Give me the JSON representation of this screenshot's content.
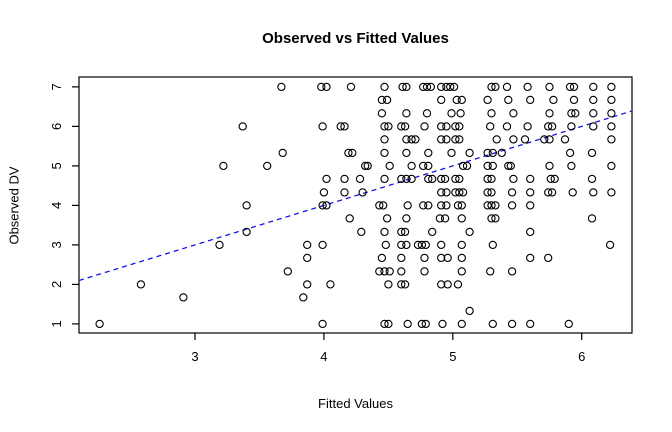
{
  "figure": {
    "title": "Observed vs Fitted Values",
    "xlabel": "Fitted Values",
    "ylabel": "Observed DV"
  },
  "chart_data": {
    "type": "scatter",
    "title": "Observed vs Fitted Values",
    "xlabel": "Fitted Values",
    "ylabel": "Observed DV",
    "x_ticks": [
      3,
      4,
      5,
      6
    ],
    "y_ticks": [
      1,
      2,
      3,
      4,
      5,
      6,
      7
    ],
    "xlim": [
      2.1,
      6.39
    ],
    "ylim": [
      0.77,
      7.25
    ],
    "grid": false,
    "legend": "none",
    "marker": "open-circle",
    "marker_color": "#000000",
    "reference_line": {
      "type": "identity",
      "slope": 1,
      "intercept": 0,
      "style": "dashed",
      "color": "#1414e6"
    },
    "points": [
      [
        3.67,
        7
      ],
      [
        3.98,
        7
      ],
      [
        4.02,
        7
      ],
      [
        4.21,
        7
      ],
      [
        4.47,
        7
      ],
      [
        4.61,
        7
      ],
      [
        4.64,
        7
      ],
      [
        4.77,
        7
      ],
      [
        4.8,
        7
      ],
      [
        4.83,
        7
      ],
      [
        4.91,
        7
      ],
      [
        4.95,
        7
      ],
      [
        4.98,
        7
      ],
      [
        5.01,
        7
      ],
      [
        5.3,
        7
      ],
      [
        5.33,
        7
      ],
      [
        5.42,
        7
      ],
      [
        5.58,
        7
      ],
      [
        5.75,
        7
      ],
      [
        5.91,
        7
      ],
      [
        5.94,
        7
      ],
      [
        6.09,
        7
      ],
      [
        6.23,
        7
      ],
      [
        4.45,
        6.67
      ],
      [
        4.49,
        6.67
      ],
      [
        4.91,
        6.67
      ],
      [
        5.03,
        6.67
      ],
      [
        5.07,
        6.67
      ],
      [
        5.27,
        6.67
      ],
      [
        5.43,
        6.67
      ],
      [
        5.6,
        6.67
      ],
      [
        5.78,
        6.67
      ],
      [
        5.94,
        6.67
      ],
      [
        6.09,
        6.67
      ],
      [
        6.23,
        6.67
      ],
      [
        4.45,
        6.33
      ],
      [
        4.64,
        6.33
      ],
      [
        4.8,
        6.33
      ],
      [
        4.99,
        6.33
      ],
      [
        5.06,
        6.33
      ],
      [
        5.3,
        6.33
      ],
      [
        5.47,
        6.33
      ],
      [
        5.75,
        6.33
      ],
      [
        5.92,
        6.33
      ],
      [
        5.95,
        6.33
      ],
      [
        6.09,
        6.33
      ],
      [
        6.23,
        6.33
      ],
      [
        3.37,
        6
      ],
      [
        3.99,
        6
      ],
      [
        4.13,
        6
      ],
      [
        4.16,
        6
      ],
      [
        4.47,
        6
      ],
      [
        4.5,
        6
      ],
      [
        4.6,
        6
      ],
      [
        4.63,
        6
      ],
      [
        4.78,
        6
      ],
      [
        4.91,
        6
      ],
      [
        4.95,
        6
      ],
      [
        5.02,
        6
      ],
      [
        5.05,
        6
      ],
      [
        5.29,
        6
      ],
      [
        5.42,
        6
      ],
      [
        5.58,
        6
      ],
      [
        5.74,
        6
      ],
      [
        5.77,
        6
      ],
      [
        5.92,
        6
      ],
      [
        6.09,
        6
      ],
      [
        6.23,
        6
      ],
      [
        4.47,
        5.67
      ],
      [
        4.64,
        5.67
      ],
      [
        4.68,
        5.67
      ],
      [
        4.71,
        5.67
      ],
      [
        4.91,
        5.67
      ],
      [
        4.95,
        5.67
      ],
      [
        5.02,
        5.67
      ],
      [
        5.05,
        5.67
      ],
      [
        5.34,
        5.67
      ],
      [
        5.47,
        5.67
      ],
      [
        5.56,
        5.67
      ],
      [
        5.71,
        5.67
      ],
      [
        5.75,
        5.67
      ],
      [
        5.87,
        5.67
      ],
      [
        6.23,
        5.67
      ],
      [
        3.68,
        5.33
      ],
      [
        4.19,
        5.33
      ],
      [
        4.22,
        5.33
      ],
      [
        4.47,
        5.33
      ],
      [
        4.64,
        5.33
      ],
      [
        4.81,
        5.33
      ],
      [
        4.99,
        5.33
      ],
      [
        5.13,
        5.33
      ],
      [
        5.27,
        5.33
      ],
      [
        5.31,
        5.33
      ],
      [
        5.38,
        5.33
      ],
      [
        5.91,
        5.33
      ],
      [
        6.08,
        5.33
      ],
      [
        3.22,
        5
      ],
      [
        3.56,
        5
      ],
      [
        4.32,
        5
      ],
      [
        4.34,
        5
      ],
      [
        4.51,
        5
      ],
      [
        4.68,
        5
      ],
      [
        4.77,
        5
      ],
      [
        4.81,
        5
      ],
      [
        5.08,
        5
      ],
      [
        5.11,
        5
      ],
      [
        5.27,
        5
      ],
      [
        5.31,
        5
      ],
      [
        5.43,
        5
      ],
      [
        5.45,
        5
      ],
      [
        5.75,
        5
      ],
      [
        5.92,
        5
      ],
      [
        6.23,
        5
      ],
      [
        4.02,
        4.67
      ],
      [
        4.16,
        4.67
      ],
      [
        4.28,
        4.67
      ],
      [
        4.47,
        4.67
      ],
      [
        4.6,
        4.67
      ],
      [
        4.64,
        4.67
      ],
      [
        4.68,
        4.67
      ],
      [
        4.81,
        4.67
      ],
      [
        4.84,
        4.67
      ],
      [
        4.91,
        4.67
      ],
      [
        4.94,
        4.67
      ],
      [
        5.02,
        4.67
      ],
      [
        5.05,
        4.67
      ],
      [
        5.27,
        4.67
      ],
      [
        5.3,
        4.67
      ],
      [
        5.47,
        4.67
      ],
      [
        5.6,
        4.67
      ],
      [
        5.76,
        4.67
      ],
      [
        5.79,
        4.67
      ],
      [
        6.08,
        4.67
      ],
      [
        4.0,
        4.33
      ],
      [
        4.16,
        4.33
      ],
      [
        4.3,
        4.33
      ],
      [
        4.91,
        4.33
      ],
      [
        4.95,
        4.33
      ],
      [
        5.02,
        4.33
      ],
      [
        5.05,
        4.33
      ],
      [
        5.08,
        4.33
      ],
      [
        5.27,
        4.33
      ],
      [
        5.3,
        4.33
      ],
      [
        5.46,
        4.33
      ],
      [
        5.6,
        4.33
      ],
      [
        5.74,
        4.33
      ],
      [
        5.77,
        4.33
      ],
      [
        5.93,
        4.33
      ],
      [
        6.09,
        4.33
      ],
      [
        6.23,
        4.33
      ],
      [
        3.4,
        4
      ],
      [
        3.99,
        4
      ],
      [
        4.02,
        4
      ],
      [
        4.43,
        4
      ],
      [
        4.46,
        4
      ],
      [
        4.65,
        4
      ],
      [
        4.77,
        4
      ],
      [
        4.81,
        4
      ],
      [
        4.91,
        4
      ],
      [
        4.95,
        4
      ],
      [
        5.04,
        4
      ],
      [
        5.07,
        4
      ],
      [
        5.27,
        4
      ],
      [
        5.3,
        4
      ],
      [
        5.33,
        4
      ],
      [
        5.46,
        4
      ],
      [
        5.6,
        4
      ],
      [
        4.2,
        3.67
      ],
      [
        4.49,
        3.67
      ],
      [
        4.64,
        3.67
      ],
      [
        4.9,
        3.67
      ],
      [
        4.94,
        3.67
      ],
      [
        5.07,
        3.67
      ],
      [
        5.3,
        3.67
      ],
      [
        5.33,
        3.67
      ],
      [
        6.08,
        3.67
      ],
      [
        3.4,
        3.33
      ],
      [
        4.29,
        3.33
      ],
      [
        4.47,
        3.33
      ],
      [
        4.6,
        3.33
      ],
      [
        4.63,
        3.33
      ],
      [
        4.84,
        3.33
      ],
      [
        5.13,
        3.33
      ],
      [
        5.6,
        3.33
      ],
      [
        3.19,
        3
      ],
      [
        3.87,
        3
      ],
      [
        3.99,
        3
      ],
      [
        4.48,
        3
      ],
      [
        4.6,
        3
      ],
      [
        4.64,
        3
      ],
      [
        4.73,
        3
      ],
      [
        4.76,
        3
      ],
      [
        4.79,
        3
      ],
      [
        4.91,
        3
      ],
      [
        5.07,
        3
      ],
      [
        5.31,
        3
      ],
      [
        6.22,
        3
      ],
      [
        3.87,
        2.67
      ],
      [
        4.45,
        2.67
      ],
      [
        4.6,
        2.67
      ],
      [
        4.78,
        2.67
      ],
      [
        4.91,
        2.67
      ],
      [
        4.96,
        2.67
      ],
      [
        5.07,
        2.67
      ],
      [
        5.6,
        2.67
      ],
      [
        5.74,
        2.67
      ],
      [
        3.72,
        2.33
      ],
      [
        4.43,
        2.33
      ],
      [
        4.47,
        2.33
      ],
      [
        4.51,
        2.33
      ],
      [
        4.6,
        2.33
      ],
      [
        4.78,
        2.33
      ],
      [
        5.07,
        2.33
      ],
      [
        5.29,
        2.33
      ],
      [
        5.46,
        2.33
      ],
      [
        2.58,
        2
      ],
      [
        3.87,
        2
      ],
      [
        4.05,
        2
      ],
      [
        4.5,
        2
      ],
      [
        4.6,
        2
      ],
      [
        4.63,
        2
      ],
      [
        4.91,
        2
      ],
      [
        4.96,
        2
      ],
      [
        5.04,
        2
      ],
      [
        2.91,
        1.67
      ],
      [
        3.84,
        1.67
      ],
      [
        5.13,
        1.33
      ],
      [
        2.26,
        1
      ],
      [
        3.99,
        1
      ],
      [
        4.47,
        1
      ],
      [
        4.5,
        1
      ],
      [
        4.65,
        1
      ],
      [
        4.76,
        1
      ],
      [
        4.79,
        1
      ],
      [
        4.92,
        1
      ],
      [
        5.07,
        1
      ],
      [
        5.31,
        1
      ],
      [
        5.46,
        1
      ],
      [
        5.6,
        1
      ],
      [
        5.9,
        1
      ]
    ]
  }
}
